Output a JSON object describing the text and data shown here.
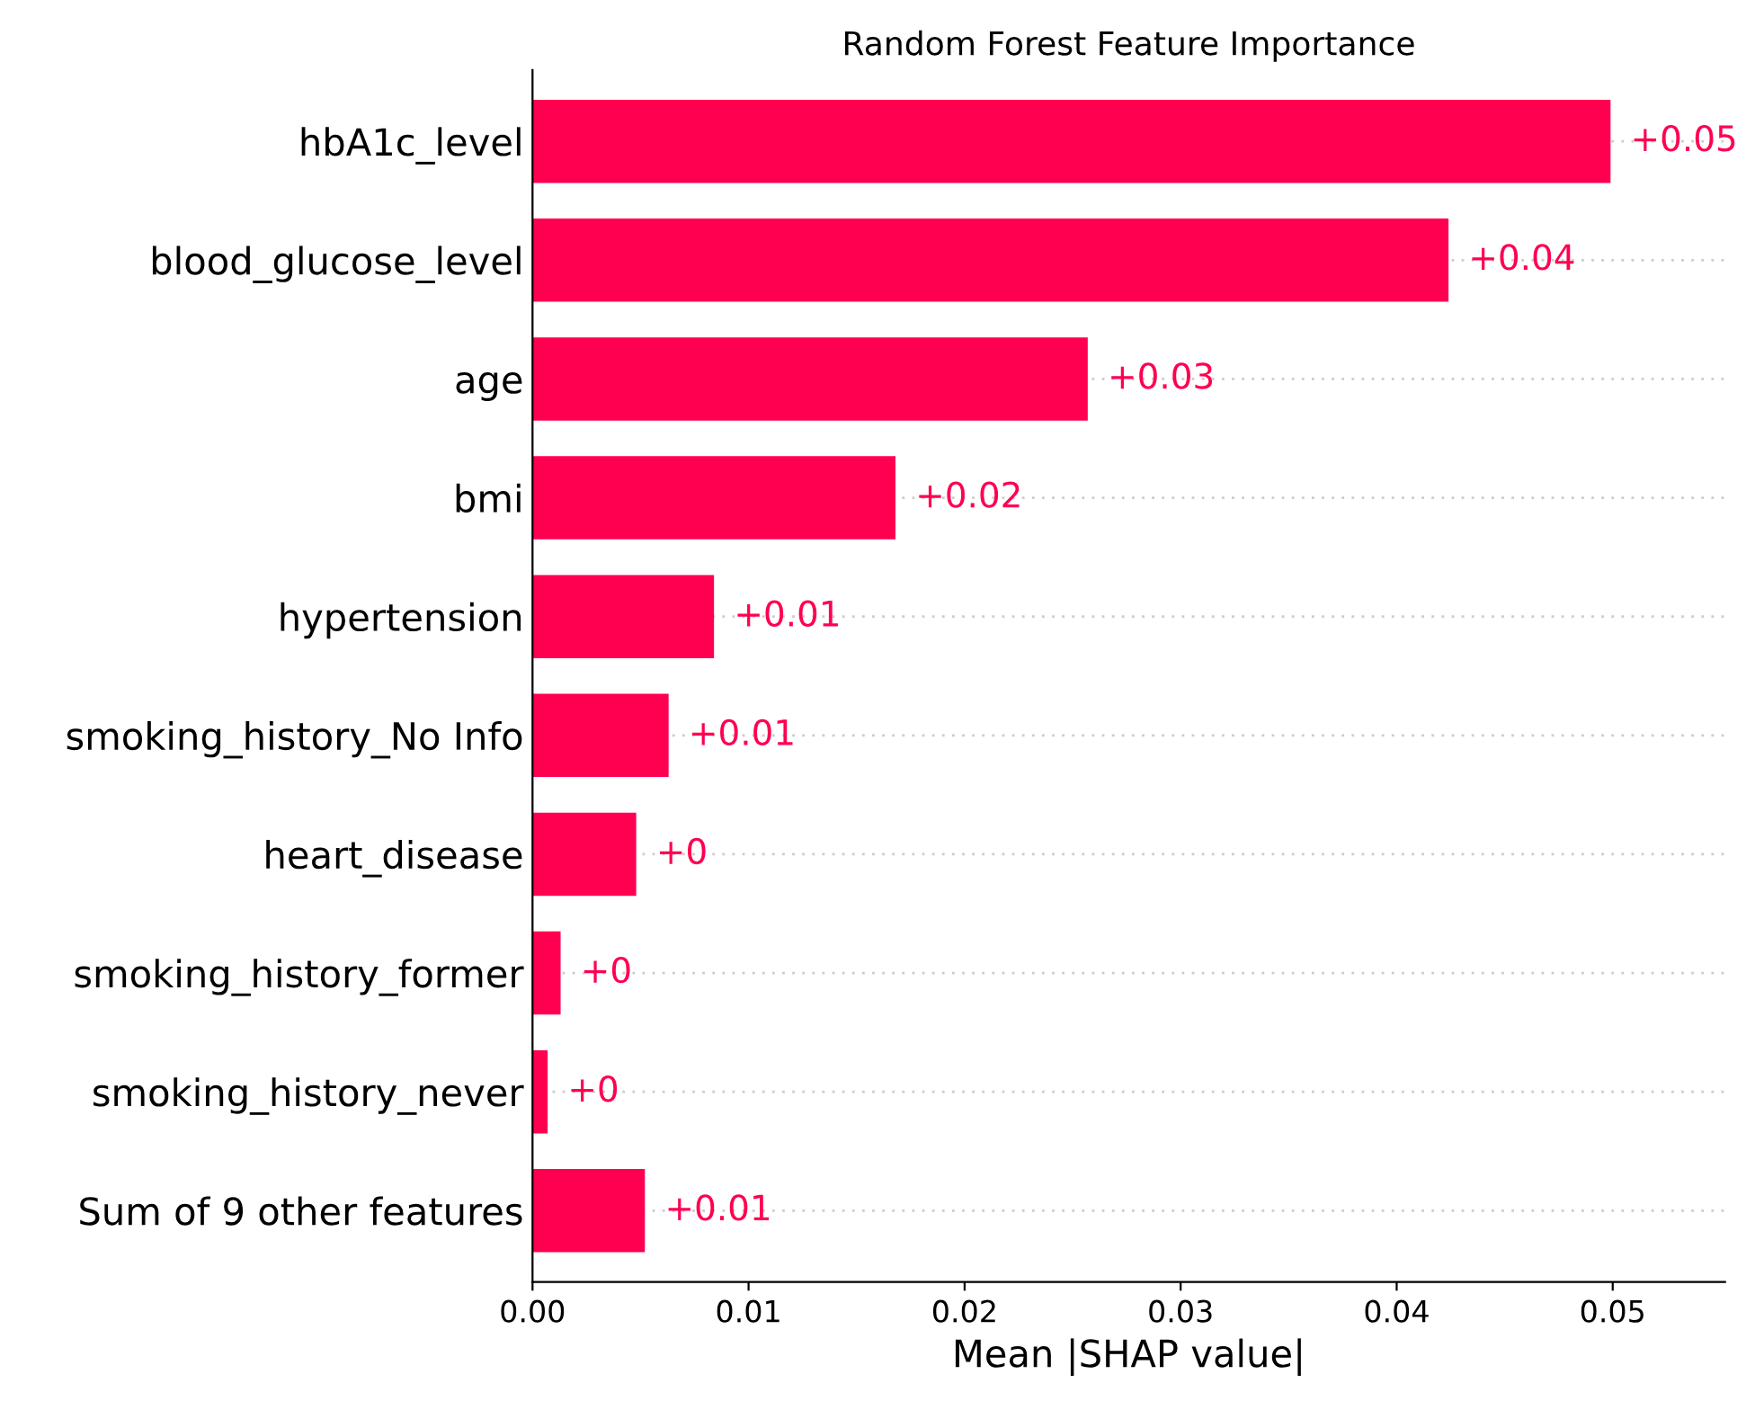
{
  "chart_data": {
    "type": "bar",
    "orientation": "horizontal",
    "title": "Random Forest Feature Importance",
    "xlabel": "Mean |SHAP value|",
    "categories": [
      "hbA1c_level",
      "blood_glucose_level",
      "age",
      "bmi",
      "hypertension",
      "smoking_history_No Info",
      "heart_disease",
      "smoking_history_former",
      "smoking_history_never",
      "Sum of 9 other features"
    ],
    "values": [
      0.0499,
      0.0424,
      0.0257,
      0.0168,
      0.0084,
      0.0063,
      0.0048,
      0.0013,
      0.0007,
      0.0052
    ],
    "value_labels": [
      "+0.05",
      "+0.04",
      "+0.03",
      "+0.02",
      "+0.01",
      "+0.01",
      "+0",
      "+0",
      "+0",
      "+0.01"
    ],
    "color": "#ff0051",
    "xlim": [
      0,
      0.0552
    ],
    "xticks": [
      {
        "value": 0,
        "label": "0.00"
      },
      {
        "value": 0.01,
        "label": "0.01"
      },
      {
        "value": 0.02,
        "label": "0.02"
      },
      {
        "value": 0.03,
        "label": "0.03"
      },
      {
        "value": 0.04,
        "label": "0.04"
      },
      {
        "value": 0.05,
        "label": "0.05"
      }
    ],
    "grid": "y",
    "legend": false
  }
}
